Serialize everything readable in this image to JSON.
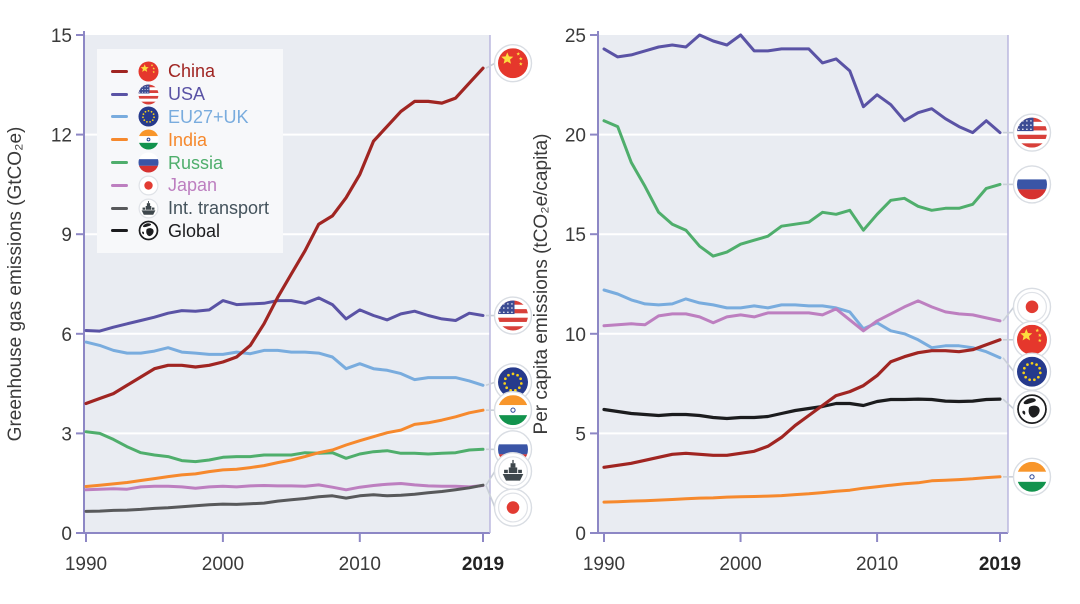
{
  "legend": {
    "items": [
      {
        "id": "china",
        "label": "China",
        "icon": "china-flag-icon"
      },
      {
        "id": "usa",
        "label": "USA",
        "icon": "usa-flag-icon"
      },
      {
        "id": "eu",
        "label": "EU27+UK",
        "icon": "eu-flag-icon"
      },
      {
        "id": "india",
        "label": "India",
        "icon": "india-flag-icon"
      },
      {
        "id": "russia",
        "label": "Russia",
        "icon": "russia-flag-icon"
      },
      {
        "id": "japan",
        "label": "Japan",
        "icon": "japan-flag-icon"
      },
      {
        "id": "transport",
        "label": "Int. transport",
        "icon": "ship-icon"
      },
      {
        "id": "global",
        "label": "Global",
        "icon": "globe-icon"
      }
    ]
  },
  "colors": {
    "china": "#a02522",
    "usa": "#5a53a5",
    "eu": "#79acde",
    "india": "#f6892d",
    "russia": "#4fae6c",
    "japan": "#bd7fc0",
    "transport": "#58595b",
    "global": "#1b1c1e",
    "transport_label": "#44535c",
    "plot_bg": "#e9ecf2",
    "grid": "#ffffff",
    "spine": "#8d87c5",
    "tick_text": "#3a3a3a"
  },
  "chart_data": [
    {
      "type": "line",
      "ylabel": "Greenhouse gas emissions (GtCO₂e)",
      "x_start": 1990,
      "x_end": 2019,
      "xticks": [
        "1990",
        "2000",
        "2010",
        "2019"
      ],
      "xtick_years": [
        1990,
        2000,
        2010,
        2019
      ],
      "ylim": [
        0,
        15
      ],
      "yticks": [
        0,
        3,
        6,
        9,
        12,
        15
      ],
      "series": [
        {
          "id": "china",
          "name": "China",
          "icon": "china",
          "icon_dy": -5,
          "values": [
            3.9,
            4.05,
            4.2,
            4.45,
            4.7,
            4.95,
            5.05,
            5.05,
            5.0,
            5.05,
            5.15,
            5.3,
            5.65,
            6.3,
            7.1,
            7.8,
            8.5,
            9.3,
            9.55,
            10.1,
            10.8,
            11.8,
            12.25,
            12.7,
            13.0,
            13.0,
            12.95,
            13.1,
            13.55,
            14.0
          ]
        },
        {
          "id": "usa",
          "name": "USA",
          "icon": "usa",
          "icon_dy": 0,
          "values": [
            6.1,
            6.08,
            6.2,
            6.3,
            6.4,
            6.5,
            6.62,
            6.7,
            6.68,
            6.72,
            7.0,
            6.88,
            6.9,
            6.92,
            7.0,
            7.0,
            6.92,
            7.08,
            6.88,
            6.45,
            6.72,
            6.55,
            6.42,
            6.6,
            6.68,
            6.55,
            6.45,
            6.4,
            6.62,
            6.55
          ]
        },
        {
          "id": "eu",
          "name": "EU27+UK",
          "icon": "eu",
          "icon_dy": -3,
          "values": [
            5.75,
            5.65,
            5.5,
            5.42,
            5.42,
            5.48,
            5.58,
            5.45,
            5.42,
            5.38,
            5.38,
            5.45,
            5.4,
            5.5,
            5.5,
            5.45,
            5.45,
            5.42,
            5.3,
            4.95,
            5.1,
            4.95,
            4.9,
            4.8,
            4.62,
            4.68,
            4.68,
            4.68,
            4.58,
            4.45
          ]
        },
        {
          "id": "india",
          "name": "India",
          "icon": "india",
          "icon_dy": 0,
          "values": [
            1.4,
            1.44,
            1.48,
            1.52,
            1.58,
            1.64,
            1.7,
            1.75,
            1.78,
            1.85,
            1.9,
            1.92,
            1.97,
            2.03,
            2.12,
            2.2,
            2.3,
            2.42,
            2.5,
            2.65,
            2.78,
            2.9,
            3.02,
            3.1,
            3.27,
            3.32,
            3.4,
            3.5,
            3.62,
            3.7
          ]
        },
        {
          "id": "russia",
          "name": "Russia",
          "icon": "russia",
          "icon_dy": 0,
          "values": [
            3.05,
            3.0,
            2.82,
            2.6,
            2.42,
            2.35,
            2.3,
            2.18,
            2.15,
            2.2,
            2.28,
            2.3,
            2.3,
            2.35,
            2.35,
            2.35,
            2.42,
            2.4,
            2.42,
            2.25,
            2.38,
            2.45,
            2.48,
            2.4,
            2.4,
            2.38,
            2.4,
            2.42,
            2.5,
            2.52
          ]
        },
        {
          "id": "transport",
          "name": "Int. transport",
          "icon": "ship",
          "icon_dy": -14,
          "values": [
            0.65,
            0.66,
            0.68,
            0.69,
            0.71,
            0.74,
            0.76,
            0.79,
            0.82,
            0.85,
            0.87,
            0.86,
            0.88,
            0.9,
            0.96,
            1.0,
            1.04,
            1.09,
            1.12,
            1.05,
            1.12,
            1.15,
            1.12,
            1.14,
            1.17,
            1.21,
            1.25,
            1.3,
            1.36,
            1.44
          ]
        },
        {
          "id": "japan",
          "name": "Japan",
          "icon": "japan",
          "icon_dy": 22,
          "values": [
            1.3,
            1.32,
            1.33,
            1.32,
            1.39,
            1.41,
            1.41,
            1.39,
            1.35,
            1.39,
            1.41,
            1.39,
            1.42,
            1.43,
            1.42,
            1.42,
            1.41,
            1.45,
            1.38,
            1.3,
            1.38,
            1.43,
            1.47,
            1.49,
            1.45,
            1.42,
            1.41,
            1.41,
            1.39,
            1.43
          ]
        }
      ]
    },
    {
      "type": "line",
      "ylabel": "Per capita emissions (tCO₂e/capita)",
      "x_start": 1990,
      "x_end": 2019,
      "xticks": [
        "1990",
        "2000",
        "2010",
        "2019"
      ],
      "xtick_years": [
        1990,
        2000,
        2010,
        2019
      ],
      "ylim": [
        0,
        25
      ],
      "yticks": [
        0,
        5,
        10,
        15,
        20,
        25
      ],
      "series": [
        {
          "id": "usa",
          "name": "USA",
          "icon": "usa",
          "icon_dy": 0,
          "values": [
            24.3,
            23.9,
            24.0,
            24.2,
            24.4,
            24.5,
            24.4,
            25.0,
            24.7,
            24.5,
            25.0,
            24.2,
            24.2,
            24.3,
            24.3,
            24.3,
            23.6,
            23.8,
            23.2,
            21.4,
            22.0,
            21.5,
            20.7,
            21.1,
            21.3,
            20.8,
            20.4,
            20.1,
            20.7,
            20.1
          ]
        },
        {
          "id": "russia",
          "name": "Russia",
          "icon": "russia",
          "icon_dy": 0,
          "values": [
            20.7,
            20.4,
            18.6,
            17.4,
            16.1,
            15.5,
            15.2,
            14.4,
            13.9,
            14.1,
            14.5,
            14.7,
            14.9,
            15.4,
            15.5,
            15.6,
            16.1,
            16.0,
            16.2,
            15.2,
            16.0,
            16.7,
            16.8,
            16.4,
            16.2,
            16.3,
            16.3,
            16.5,
            17.3,
            17.5
          ]
        },
        {
          "id": "japan",
          "name": "Japan",
          "icon": "japan",
          "icon_dy": -14,
          "values": [
            10.4,
            10.45,
            10.5,
            10.45,
            10.9,
            11.0,
            11.0,
            10.85,
            10.55,
            10.85,
            10.95,
            10.85,
            11.05,
            11.05,
            11.05,
            11.05,
            10.95,
            11.25,
            10.7,
            10.15,
            10.65,
            11.0,
            11.35,
            11.65,
            11.35,
            11.1,
            11.0,
            10.95,
            10.8,
            10.65
          ]
        },
        {
          "id": "china",
          "name": "China",
          "icon": "china",
          "icon_dy": 0,
          "values": [
            3.3,
            3.4,
            3.5,
            3.65,
            3.8,
            3.95,
            4.0,
            3.95,
            3.9,
            3.9,
            4.0,
            4.1,
            4.35,
            4.8,
            5.4,
            5.9,
            6.4,
            6.9,
            7.1,
            7.4,
            7.9,
            8.6,
            8.85,
            9.05,
            9.15,
            9.15,
            9.1,
            9.2,
            9.45,
            9.7
          ]
        },
        {
          "id": "eu",
          "name": "EU27+UK",
          "icon": "eu",
          "icon_dy": 14,
          "values": [
            12.2,
            12.0,
            11.7,
            11.5,
            11.45,
            11.5,
            11.75,
            11.55,
            11.45,
            11.3,
            11.3,
            11.4,
            11.3,
            11.45,
            11.45,
            11.4,
            11.4,
            11.3,
            11.1,
            10.25,
            10.55,
            10.15,
            10.0,
            9.7,
            9.3,
            9.4,
            9.4,
            9.3,
            9.1,
            8.8
          ]
        },
        {
          "id": "global",
          "name": "Global",
          "icon": "globe",
          "icon_dy": 10,
          "values": [
            6.2,
            6.1,
            6.0,
            5.95,
            5.9,
            5.95,
            5.95,
            5.9,
            5.8,
            5.75,
            5.8,
            5.8,
            5.85,
            6.0,
            6.15,
            6.25,
            6.35,
            6.5,
            6.5,
            6.4,
            6.6,
            6.7,
            6.7,
            6.72,
            6.7,
            6.62,
            6.6,
            6.62,
            6.7,
            6.72
          ]
        },
        {
          "id": "india",
          "name": "India",
          "icon": "india",
          "icon_dy": 0,
          "values": [
            1.55,
            1.57,
            1.6,
            1.62,
            1.65,
            1.68,
            1.72,
            1.75,
            1.76,
            1.8,
            1.82,
            1.83,
            1.85,
            1.88,
            1.93,
            1.97,
            2.03,
            2.1,
            2.15,
            2.25,
            2.32,
            2.4,
            2.47,
            2.52,
            2.62,
            2.65,
            2.68,
            2.72,
            2.78,
            2.82
          ]
        }
      ]
    }
  ]
}
